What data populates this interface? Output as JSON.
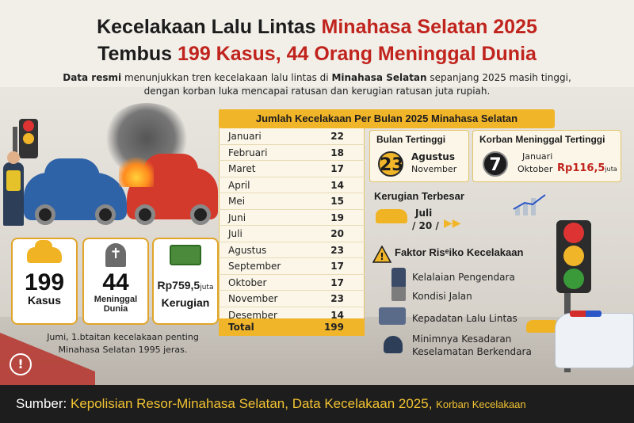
{
  "title": {
    "line1_prefix": "Kecelakaan Lalu Lintas ",
    "line1_highlight": "Minahasa Selatan 2025",
    "line2_prefix": "Tembus ",
    "line2_highlight": "199 Kasus, 44 Orang Meninggal Dunia"
  },
  "intro": {
    "part1": "Data resmi",
    "part2": " menunjukkan tren kecelakaan lalu lintas di ",
    "part3": "Minahasa Selatan",
    "part4": " sepanjang 2025 masih tinggi,",
    "line2": "dengan korban luka mencapai ratusan dan kerugian ratusan juta rupiah."
  },
  "stats": {
    "cases": {
      "value": "199",
      "label": "Kasus"
    },
    "deaths": {
      "value": "44",
      "label": "Meninggal Dunia"
    },
    "loss": {
      "value": "Rp759,5",
      "unit": "juta",
      "label": "Kerugian"
    }
  },
  "note": "Jumi, 1.btaitan kecelakaan penting Minahasa Selatan 1995 jeras.",
  "table": {
    "title_prefix": "Jumlah Kecelakaan Per Bulan 2025 ",
    "title_highlight": "Minahasa Selatan",
    "rows": [
      {
        "month": "Januari",
        "value": "22"
      },
      {
        "month": "Februari",
        "value": "18"
      },
      {
        "month": "Maret",
        "value": "17"
      },
      {
        "month": "April",
        "value": "14"
      },
      {
        "month": "Mei",
        "value": "15"
      },
      {
        "month": "Juni",
        "value": "19"
      },
      {
        "month": "Juli",
        "value": "20"
      },
      {
        "month": "Agustus",
        "value": "23"
      },
      {
        "month": "September",
        "value": "17"
      },
      {
        "month": "Oktober",
        "value": "17"
      },
      {
        "month": "November",
        "value": "23"
      },
      {
        "month": "Desember",
        "value": "14"
      }
    ],
    "total_label": "Total",
    "total_value": "199"
  },
  "highest_month": {
    "title": "Bulan Tertinggi",
    "value": "23",
    "month1": "Agustus",
    "month2": "November"
  },
  "highest_deaths": {
    "title": "Korban Meninggal Tertinggi",
    "value": "7",
    "month1": "Januari",
    "month2": "Oktober",
    "amount": "Rp116,5",
    "unit": "juta"
  },
  "biggest_loss": {
    "title": "Kerugian Terbesar",
    "month": "Juli",
    "value": "/ 20 /"
  },
  "factors": {
    "title": "Faktor Risiko Kecelakaan",
    "title_display": "Faktor Risᵉiko Kecelakaan",
    "items": [
      "Kelalaian Pengendara",
      "Kondisi Jalan",
      "Kepadatan Lalu Lintas",
      "Minimnya Kesadaran Keselamatan Berkendara"
    ]
  },
  "footer": {
    "label": "Sumber: ",
    "source": "Kepolisian Resor-Minahasa Selatan, Data Kecelakaan 2025, ",
    "extra": "Korban Kecelakaan"
  },
  "colors": {
    "accent": "#f1b52a",
    "red": "#c0241d",
    "dark": "#1d1d1d"
  },
  "icons": [
    "traffic-light-icon",
    "car-icon",
    "grave-icon",
    "money-icon",
    "warning-icon",
    "phone-icon",
    "road-icon",
    "traffic-icon",
    "helmet-icon",
    "alert-icon"
  ]
}
